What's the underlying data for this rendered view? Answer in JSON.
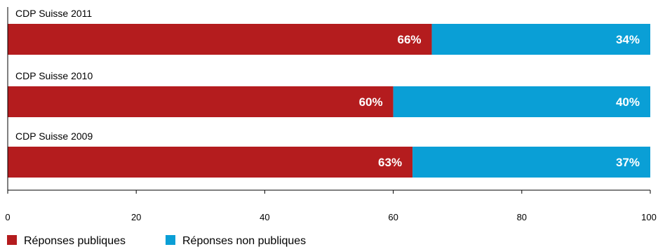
{
  "colors": {
    "public": "#b41c1e",
    "non_public": "#0a9fd6",
    "axis": "#000000"
  },
  "chart_data": {
    "type": "bar",
    "orientation": "horizontal",
    "stacked": true,
    "categories": [
      "CDP Suisse 2011",
      "CDP Suisse 2010",
      "CDP Suisse 2009"
    ],
    "series": [
      {
        "name": "Réponses publiques",
        "values": [
          66,
          60,
          63
        ],
        "labels": [
          "66%",
          "60%",
          "63%"
        ],
        "color": "#b41c1e"
      },
      {
        "name": "Réponses non publiques",
        "values": [
          34,
          40,
          37
        ],
        "labels": [
          "34%",
          "40%",
          "37%"
        ],
        "color": "#0a9fd6"
      }
    ],
    "xlim": [
      0,
      100
    ],
    "xticks": [
      0,
      20,
      40,
      60,
      80,
      100
    ],
    "xtick_labels": [
      "0",
      "20",
      "40",
      "60",
      "80",
      "100"
    ],
    "grid": false,
    "legend_position": "bottom-left"
  }
}
